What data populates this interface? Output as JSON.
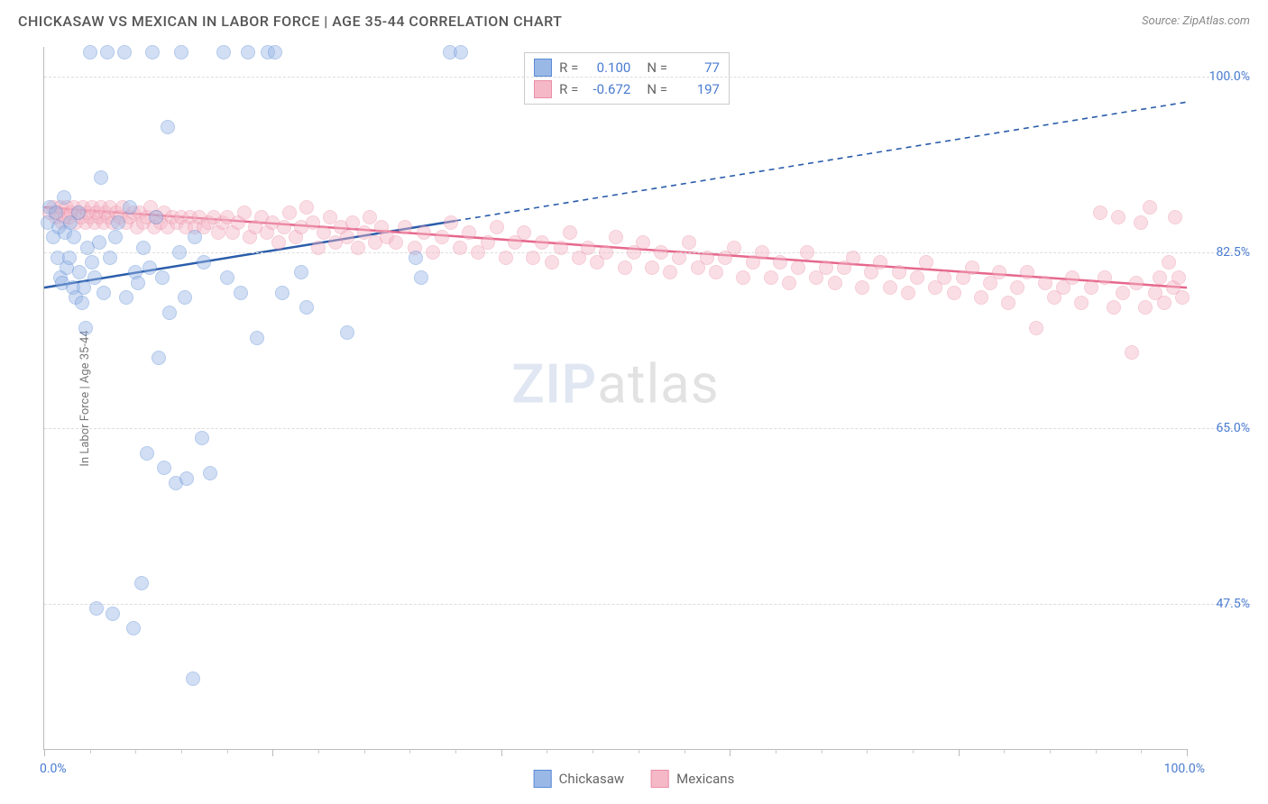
{
  "header": {
    "title": "CHICKASAW VS MEXICAN IN LABOR FORCE | AGE 35-44 CORRELATION CHART",
    "source": "Source: ZipAtlas.com"
  },
  "chart": {
    "type": "scatter",
    "y_axis_title": "In Labor Force | Age 35-44",
    "x_min": 0,
    "x_max": 100,
    "y_min": 33,
    "y_max": 103,
    "y_ticks": [
      {
        "v": 47.5,
        "label": "47.5%"
      },
      {
        "v": 65.0,
        "label": "65.0%"
      },
      {
        "v": 82.5,
        "label": "82.5%"
      },
      {
        "v": 100.0,
        "label": "100.0%"
      }
    ],
    "x_left_label": "0.0%",
    "x_right_label": "100.0%",
    "x_major_ticks": [
      0,
      20,
      40,
      60,
      80,
      100
    ],
    "x_minor_ticks": [
      4,
      8,
      12,
      16,
      24,
      28,
      32,
      36,
      44,
      48,
      52,
      56,
      64,
      68,
      72,
      76,
      84,
      88,
      92,
      96
    ],
    "background_color": "#ffffff",
    "grid_color": "#dddddd",
    "axis_color": "#bbbbbb",
    "tick_label_color": "#4a7bd0",
    "marker_radius": 8,
    "marker_opacity": 0.45,
    "watermark": {
      "bold": "ZIP",
      "light": "atlas"
    }
  },
  "series": {
    "chickasaw": {
      "label": "Chickasaw",
      "fill": "#9ab8e6",
      "stroke": "#5a8bd6",
      "trend_color": "#2a5caa",
      "trend": {
        "x1": 0,
        "y1": 79.0,
        "x2": 100,
        "y2": 97.5,
        "solid_until_x": 36
      },
      "stats": {
        "R": "0.100",
        "N": "77"
      },
      "points": [
        [
          0.3,
          85.5
        ],
        [
          0.5,
          87.0
        ],
        [
          0.8,
          84.0
        ],
        [
          1.0,
          86.5
        ],
        [
          1.2,
          82.0
        ],
        [
          1.3,
          85.0
        ],
        [
          1.4,
          80.0
        ],
        [
          1.6,
          79.5
        ],
        [
          1.7,
          88.0
        ],
        [
          1.8,
          84.5
        ],
        [
          2.0,
          81.0
        ],
        [
          2.2,
          82.0
        ],
        [
          2.3,
          85.5
        ],
        [
          2.5,
          79.0
        ],
        [
          2.6,
          84.0
        ],
        [
          2.8,
          78.0
        ],
        [
          3.0,
          86.5
        ],
        [
          3.1,
          80.5
        ],
        [
          3.3,
          77.5
        ],
        [
          3.5,
          79.0
        ],
        [
          3.6,
          75.0
        ],
        [
          3.8,
          83.0
        ],
        [
          4.0,
          102.5
        ],
        [
          4.2,
          81.5
        ],
        [
          4.4,
          80.0
        ],
        [
          4.6,
          47.0
        ],
        [
          4.8,
          83.5
        ],
        [
          5.0,
          90.0
        ],
        [
          5.2,
          78.5
        ],
        [
          5.5,
          102.5
        ],
        [
          5.8,
          82.0
        ],
        [
          6.0,
          46.5
        ],
        [
          6.2,
          84.0
        ],
        [
          6.5,
          85.5
        ],
        [
          7.0,
          102.5
        ],
        [
          7.2,
          78.0
        ],
        [
          7.5,
          87.0
        ],
        [
          7.8,
          45.0
        ],
        [
          8.0,
          80.5
        ],
        [
          8.2,
          79.5
        ],
        [
          8.5,
          49.5
        ],
        [
          8.7,
          83.0
        ],
        [
          9.0,
          62.5
        ],
        [
          9.2,
          81.0
        ],
        [
          9.5,
          102.5
        ],
        [
          9.8,
          86.0
        ],
        [
          10.0,
          72.0
        ],
        [
          10.3,
          80.0
        ],
        [
          10.5,
          61.0
        ],
        [
          10.8,
          95.0
        ],
        [
          11.0,
          76.5
        ],
        [
          11.5,
          59.5
        ],
        [
          11.8,
          82.5
        ],
        [
          12.0,
          102.5
        ],
        [
          12.3,
          78.0
        ],
        [
          12.5,
          60.0
        ],
        [
          13.0,
          40.0
        ],
        [
          13.2,
          84.0
        ],
        [
          13.8,
          64.0
        ],
        [
          14.0,
          81.5
        ],
        [
          14.5,
          60.5
        ],
        [
          15.7,
          102.5
        ],
        [
          16.0,
          80.0
        ],
        [
          17.2,
          78.5
        ],
        [
          17.8,
          102.5
        ],
        [
          18.6,
          74.0
        ],
        [
          19.6,
          102.5
        ],
        [
          20.2,
          102.5
        ],
        [
          20.8,
          78.5
        ],
        [
          22.5,
          80.5
        ],
        [
          23.0,
          77.0
        ],
        [
          26.5,
          74.5
        ],
        [
          32.5,
          82.0
        ],
        [
          33.0,
          80.0
        ],
        [
          35.5,
          102.5
        ],
        [
          36.5,
          102.5
        ]
      ]
    },
    "mexicans": {
      "label": "Mexicans",
      "fill": "#f5b8c7",
      "stroke": "#ea8fa8",
      "trend_color": "#e6678c",
      "trend": {
        "x1": 0,
        "y1": 87.0,
        "x2": 100,
        "y2": 79.0,
        "solid_until_x": 100
      },
      "stats": {
        "R": "-0.672",
        "N": "197"
      },
      "points": [
        [
          0.5,
          86.5
        ],
        [
          0.8,
          87.0
        ],
        [
          1.0,
          86.0
        ],
        [
          1.2,
          86.5
        ],
        [
          1.4,
          87.0
        ],
        [
          1.6,
          85.5
        ],
        [
          1.8,
          86.0
        ],
        [
          2.0,
          87.0
        ],
        [
          2.2,
          86.0
        ],
        [
          2.4,
          86.5
        ],
        [
          2.6,
          87.0
        ],
        [
          2.8,
          85.5
        ],
        [
          3.0,
          86.5
        ],
        [
          3.2,
          86.0
        ],
        [
          3.4,
          87.0
        ],
        [
          3.6,
          85.5
        ],
        [
          3.8,
          86.5
        ],
        [
          4.0,
          86.0
        ],
        [
          4.2,
          87.0
        ],
        [
          4.4,
          85.5
        ],
        [
          4.6,
          86.5
        ],
        [
          4.8,
          86.0
        ],
        [
          5.0,
          87.0
        ],
        [
          5.2,
          85.5
        ],
        [
          5.4,
          86.5
        ],
        [
          5.6,
          86.0
        ],
        [
          5.8,
          87.0
        ],
        [
          6.0,
          85.5
        ],
        [
          6.3,
          86.5
        ],
        [
          6.6,
          86.0
        ],
        [
          6.9,
          87.0
        ],
        [
          7.2,
          85.5
        ],
        [
          7.5,
          86.0
        ],
        [
          7.8,
          86.5
        ],
        [
          8.1,
          85.0
        ],
        [
          8.4,
          86.5
        ],
        [
          8.7,
          85.5
        ],
        [
          9.0,
          86.0
        ],
        [
          9.3,
          87.0
        ],
        [
          9.6,
          85.0
        ],
        [
          9.9,
          86.0
        ],
        [
          10.2,
          85.5
        ],
        [
          10.5,
          86.5
        ],
        [
          10.8,
          85.0
        ],
        [
          11.2,
          86.0
        ],
        [
          11.6,
          85.5
        ],
        [
          12.0,
          86.0
        ],
        [
          12.4,
          85.0
        ],
        [
          12.8,
          86.0
        ],
        [
          13.2,
          85.0
        ],
        [
          13.6,
          86.0
        ],
        [
          14.0,
          85.0
        ],
        [
          14.4,
          85.5
        ],
        [
          14.8,
          86.0
        ],
        [
          15.2,
          84.5
        ],
        [
          15.6,
          85.5
        ],
        [
          16.0,
          86.0
        ],
        [
          16.5,
          84.5
        ],
        [
          17.0,
          85.5
        ],
        [
          17.5,
          86.5
        ],
        [
          18.0,
          84.0
        ],
        [
          18.5,
          85.0
        ],
        [
          19.0,
          86.0
        ],
        [
          19.5,
          84.5
        ],
        [
          20.0,
          85.5
        ],
        [
          20.5,
          83.5
        ],
        [
          21.0,
          85.0
        ],
        [
          21.5,
          86.5
        ],
        [
          22.0,
          84.0
        ],
        [
          22.5,
          85.0
        ],
        [
          23.0,
          87.0
        ],
        [
          23.5,
          85.5
        ],
        [
          24.0,
          83.0
        ],
        [
          24.5,
          84.5
        ],
        [
          25.0,
          86.0
        ],
        [
          25.5,
          83.5
        ],
        [
          26.0,
          85.0
        ],
        [
          26.5,
          84.0
        ],
        [
          27.0,
          85.5
        ],
        [
          27.5,
          83.0
        ],
        [
          28.0,
          84.5
        ],
        [
          28.5,
          86.0
        ],
        [
          29.0,
          83.5
        ],
        [
          29.5,
          85.0
        ],
        [
          30.0,
          84.0
        ],
        [
          30.8,
          83.5
        ],
        [
          31.6,
          85.0
        ],
        [
          32.4,
          83.0
        ],
        [
          33.2,
          84.5
        ],
        [
          34.0,
          82.5
        ],
        [
          34.8,
          84.0
        ],
        [
          35.6,
          85.5
        ],
        [
          36.4,
          83.0
        ],
        [
          37.2,
          84.5
        ],
        [
          38.0,
          82.5
        ],
        [
          38.8,
          83.5
        ],
        [
          39.6,
          85.0
        ],
        [
          40.4,
          82.0
        ],
        [
          41.2,
          83.5
        ],
        [
          42.0,
          84.5
        ],
        [
          42.8,
          82.0
        ],
        [
          43.6,
          83.5
        ],
        [
          44.4,
          81.5
        ],
        [
          45.2,
          83.0
        ],
        [
          46.0,
          84.5
        ],
        [
          46.8,
          82.0
        ],
        [
          47.6,
          83.0
        ],
        [
          48.4,
          81.5
        ],
        [
          49.2,
          82.5
        ],
        [
          50.0,
          84.0
        ],
        [
          50.8,
          81.0
        ],
        [
          51.6,
          82.5
        ],
        [
          52.4,
          83.5
        ],
        [
          53.2,
          81.0
        ],
        [
          54.0,
          82.5
        ],
        [
          54.8,
          80.5
        ],
        [
          55.6,
          82.0
        ],
        [
          56.4,
          83.5
        ],
        [
          57.2,
          81.0
        ],
        [
          58.0,
          82.0
        ],
        [
          58.8,
          80.5
        ],
        [
          59.6,
          82.0
        ],
        [
          60.4,
          83.0
        ],
        [
          61.2,
          80.0
        ],
        [
          62.0,
          81.5
        ],
        [
          62.8,
          82.5
        ],
        [
          63.6,
          80.0
        ],
        [
          64.4,
          81.5
        ],
        [
          65.2,
          79.5
        ],
        [
          66.0,
          81.0
        ],
        [
          66.8,
          82.5
        ],
        [
          67.6,
          80.0
        ],
        [
          68.4,
          81.0
        ],
        [
          69.2,
          79.5
        ],
        [
          70.0,
          81.0
        ],
        [
          70.8,
          82.0
        ],
        [
          71.6,
          79.0
        ],
        [
          72.4,
          80.5
        ],
        [
          73.2,
          81.5
        ],
        [
          74.0,
          79.0
        ],
        [
          74.8,
          80.5
        ],
        [
          75.6,
          78.5
        ],
        [
          76.4,
          80.0
        ],
        [
          77.2,
          81.5
        ],
        [
          78.0,
          79.0
        ],
        [
          78.8,
          80.0
        ],
        [
          79.6,
          78.5
        ],
        [
          80.4,
          80.0
        ],
        [
          81.2,
          81.0
        ],
        [
          82.0,
          78.0
        ],
        [
          82.8,
          79.5
        ],
        [
          83.6,
          80.5
        ],
        [
          84.4,
          77.5
        ],
        [
          85.2,
          79.0
        ],
        [
          86.0,
          80.5
        ],
        [
          86.8,
          75.0
        ],
        [
          87.6,
          79.5
        ],
        [
          88.4,
          78.0
        ],
        [
          89.2,
          79.0
        ],
        [
          90.0,
          80.0
        ],
        [
          90.8,
          77.5
        ],
        [
          91.6,
          79.0
        ],
        [
          92.4,
          86.5
        ],
        [
          92.8,
          80.0
        ],
        [
          93.6,
          77.0
        ],
        [
          94.0,
          86.0
        ],
        [
          94.4,
          78.5
        ],
        [
          95.2,
          72.5
        ],
        [
          95.6,
          79.5
        ],
        [
          96.0,
          85.5
        ],
        [
          96.4,
          77.0
        ],
        [
          96.8,
          87.0
        ],
        [
          97.2,
          78.5
        ],
        [
          97.6,
          80.0
        ],
        [
          98.0,
          77.5
        ],
        [
          98.4,
          81.5
        ],
        [
          98.8,
          79.0
        ],
        [
          99.0,
          86.0
        ],
        [
          99.3,
          80.0
        ],
        [
          99.6,
          78.0
        ]
      ]
    }
  },
  "stats_box": {
    "rows": [
      {
        "series": "chickasaw"
      },
      {
        "series": "mexicans"
      }
    ],
    "R_label": "R =",
    "N_label": "N ="
  }
}
